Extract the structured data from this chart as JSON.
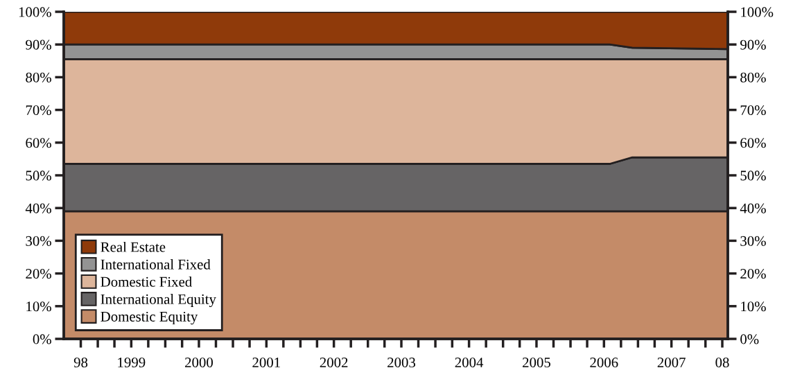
{
  "chart_data": {
    "type": "area",
    "stacked": true,
    "x": [
      "1998-07",
      "2006-08",
      "2006-12",
      "2008-05"
    ],
    "series": [
      {
        "name": "Domestic Equity",
        "color": "#c48b68",
        "values": [
          39,
          39,
          39,
          39
        ]
      },
      {
        "name": "International Equity",
        "color": "#666465",
        "values": [
          14.5,
          14.5,
          16.5,
          16.5
        ]
      },
      {
        "name": "Domestic Fixed",
        "color": "#ddb59b",
        "values": [
          32,
          32,
          30,
          30
        ]
      },
      {
        "name": "International Fixed",
        "color": "#939393",
        "values": [
          4.5,
          4.5,
          3.5,
          3.1
        ]
      },
      {
        "name": "Real Estate",
        "color": "#8f3a0a",
        "values": [
          10,
          10,
          11,
          11.4
        ]
      }
    ],
    "xlim": [
      "1998-07",
      "2008-05"
    ],
    "xticks": [
      {
        "value": "1998-10",
        "label": "98"
      },
      {
        "value": "1999-01",
        "label": null
      },
      {
        "value": "1999-04",
        "label": null
      },
      {
        "value": "1999-07",
        "label": "1999"
      },
      {
        "value": "1999-10",
        "label": null
      },
      {
        "value": "2000-01",
        "label": null
      },
      {
        "value": "2000-04",
        "label": null
      },
      {
        "value": "2000-07",
        "label": "2000"
      },
      {
        "value": "2000-10",
        "label": null
      },
      {
        "value": "2001-01",
        "label": null
      },
      {
        "value": "2001-04",
        "label": null
      },
      {
        "value": "2001-07",
        "label": "2001"
      },
      {
        "value": "2001-10",
        "label": null
      },
      {
        "value": "2002-01",
        "label": null
      },
      {
        "value": "2002-04",
        "label": null
      },
      {
        "value": "2002-07",
        "label": "2002"
      },
      {
        "value": "2002-10",
        "label": null
      },
      {
        "value": "2003-01",
        "label": null
      },
      {
        "value": "2003-04",
        "label": null
      },
      {
        "value": "2003-07",
        "label": "2003"
      },
      {
        "value": "2003-10",
        "label": null
      },
      {
        "value": "2004-01",
        "label": null
      },
      {
        "value": "2004-04",
        "label": null
      },
      {
        "value": "2004-07",
        "label": "2004"
      },
      {
        "value": "2004-10",
        "label": null
      },
      {
        "value": "2005-01",
        "label": null
      },
      {
        "value": "2005-04",
        "label": null
      },
      {
        "value": "2005-07",
        "label": "2005"
      },
      {
        "value": "2005-10",
        "label": null
      },
      {
        "value": "2006-01",
        "label": null
      },
      {
        "value": "2006-04",
        "label": null
      },
      {
        "value": "2006-07",
        "label": "2006"
      },
      {
        "value": "2006-10",
        "label": null
      },
      {
        "value": "2007-01",
        "label": null
      },
      {
        "value": "2007-04",
        "label": null
      },
      {
        "value": "2007-07",
        "label": "2007"
      },
      {
        "value": "2007-10",
        "label": null
      },
      {
        "value": "2008-01",
        "label": null
      },
      {
        "value": "2008-04",
        "label": "08"
      }
    ],
    "ylim": [
      0,
      100
    ],
    "yticks": [
      {
        "value": 0,
        "label": "0%"
      },
      {
        "value": 10,
        "label": "10%"
      },
      {
        "value": 20,
        "label": "20%"
      },
      {
        "value": 30,
        "label": "30%"
      },
      {
        "value": 40,
        "label": "40%"
      },
      {
        "value": 50,
        "label": "50%"
      },
      {
        "value": 60,
        "label": "60%"
      },
      {
        "value": 70,
        "label": "70%"
      },
      {
        "value": 80,
        "label": "80%"
      },
      {
        "value": 90,
        "label": "90%"
      },
      {
        "value": 100,
        "label": "100%"
      }
    ],
    "y2lim": [
      0,
      100
    ],
    "y2ticks": [
      {
        "value": 0,
        "label": "0%"
      },
      {
        "value": 10,
        "label": "10%"
      },
      {
        "value": 20,
        "label": "20%"
      },
      {
        "value": 30,
        "label": "30%"
      },
      {
        "value": 40,
        "label": "40%"
      },
      {
        "value": 50,
        "label": "50%"
      },
      {
        "value": 60,
        "label": "60%"
      },
      {
        "value": 70,
        "label": "70%"
      },
      {
        "value": 80,
        "label": "80%"
      },
      {
        "value": 90,
        "label": "90%"
      },
      {
        "value": 100,
        "label": "100%"
      }
    ],
    "legend": "bottom left",
    "grid": false
  }
}
